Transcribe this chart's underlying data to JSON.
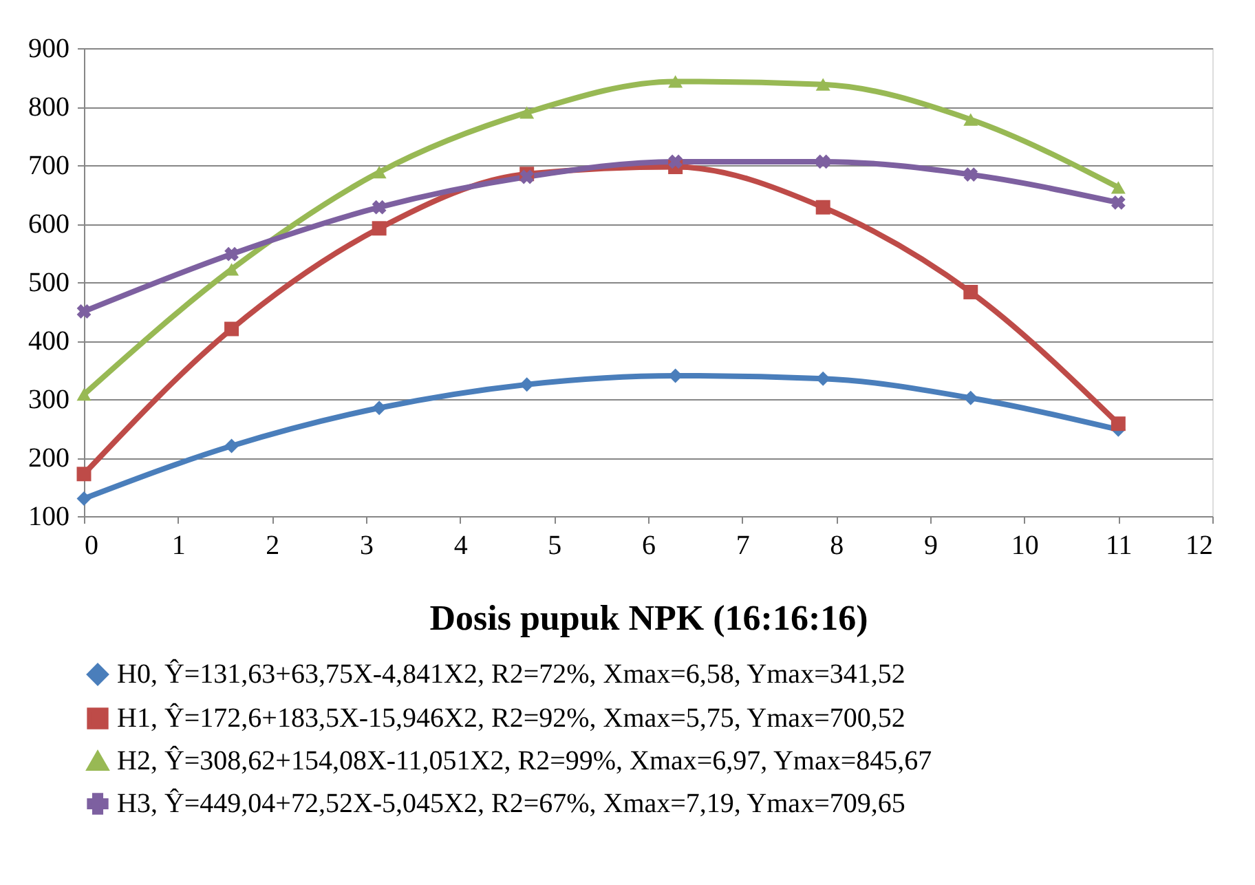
{
  "chart_data": {
    "type": "line",
    "xlabel": "Dosis pupuk NPK (16:16:16)",
    "x": [
      0,
      1.57,
      3.14,
      4.71,
      6.29,
      7.86,
      9.43,
      11
    ],
    "xlim": [
      0,
      12
    ],
    "xticks": [
      0,
      1,
      2,
      3,
      4,
      5,
      6,
      7,
      8,
      9,
      10,
      11,
      12
    ],
    "ylim": [
      100,
      900
    ],
    "yticks": [
      100,
      200,
      300,
      400,
      500,
      600,
      700,
      800,
      900
    ],
    "grid": "y",
    "legend": "bottom",
    "series": [
      {
        "name": "H0, Ŷ=131,63+63,75X-4,841X2,  R2=72%,  Xmax=6,58,  Ymax=341,52",
        "color": "#4a7ebb",
        "marker": "diamond",
        "values": [
          130,
          220,
          285,
          325,
          340,
          335,
          302,
          248
        ]
      },
      {
        "name": "H1, Ŷ=172,6+183,5X-15,946X2,  R2=92%,  Xmax=5,75,  Ymax=700,52",
        "color": "#be4b48",
        "marker": "square",
        "values": [
          172,
          420,
          592,
          685,
          697,
          628,
          483,
          258
        ]
      },
      {
        "name": "H2, Ŷ=308,62+154,08X-11,051X2,  R2=99%,  Xmax=6,97,  Ymax=845,67",
        "color": "#98b954",
        "marker": "triangle",
        "values": [
          308,
          522,
          688,
          790,
          843,
          838,
          778,
          662
        ]
      },
      {
        "name": "H3, Ŷ=449,04+72,52X-5,045X2,  R2=67%,  Xmax=7,19,  Ymax=709,65",
        "color": "#7d60a0",
        "marker": "cross",
        "values": [
          450,
          548,
          628,
          680,
          706,
          706,
          684,
          636
        ]
      }
    ]
  }
}
